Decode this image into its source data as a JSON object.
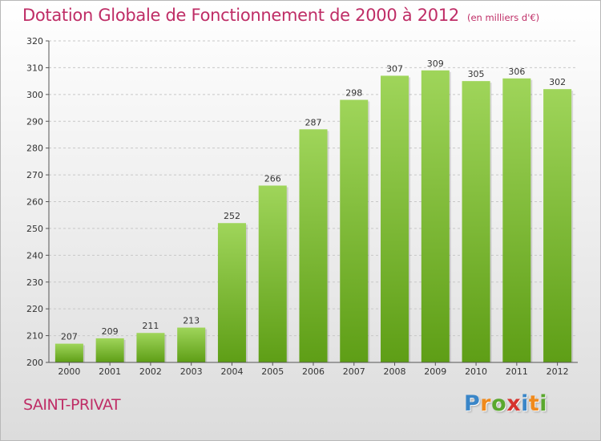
{
  "header": {
    "title": "Dotation Globale de Fonctionnement de 2000 à 2012",
    "unit": "(en milliers d'€)"
  },
  "place": "SAINT-PRIVAT",
  "brand": {
    "text": "Proxiti",
    "letters": [
      {
        "ch": "P",
        "color": "#3a86c8"
      },
      {
        "ch": "r",
        "color": "#f08a1c"
      },
      {
        "ch": "o",
        "color": "#5aa82e"
      },
      {
        "ch": "x",
        "color": "#d6332e"
      },
      {
        "ch": "i",
        "color": "#3a86c8"
      },
      {
        "ch": "t",
        "color": "#f08a1c"
      },
      {
        "ch": "i",
        "color": "#5aa82e"
      }
    ]
  },
  "colors": {
    "title": "#bf2d66",
    "bar_top": "#9fd55a",
    "bar_bottom": "#5e9e16",
    "grid": "#c8c8c8"
  },
  "chart_data": {
    "type": "bar",
    "title": "Dotation Globale de Fonctionnement de 2000 à 2012",
    "subtitle": "(en milliers d'€)",
    "categories": [
      "2000",
      "2001",
      "2002",
      "2003",
      "2004",
      "2005",
      "2006",
      "2007",
      "2008",
      "2009",
      "2010",
      "2011",
      "2012"
    ],
    "values": [
      207,
      209,
      211,
      213,
      252,
      266,
      287,
      298,
      307,
      309,
      305,
      306,
      302
    ],
    "ylim": [
      200,
      320
    ],
    "yticks": [
      200,
      210,
      220,
      230,
      240,
      250,
      260,
      270,
      280,
      290,
      300,
      310,
      320
    ],
    "grid": true,
    "data_labels": true
  }
}
